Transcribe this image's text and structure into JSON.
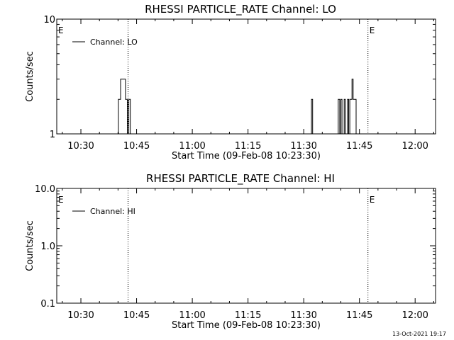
{
  "page_stamp": "13-Oct-2021 19:17",
  "colors": {
    "background": "#ffffff",
    "ink": "#000000"
  },
  "chart_data": [
    {
      "type": "line",
      "title": "RHESSI PARTICLE_RATE Channel: LO",
      "xlabel": "Start Time (09-Feb-08 10:23:30)",
      "ylabel": "Counts/sec",
      "x_unit": "minutes since 10:23:30",
      "xlim": [
        0,
        102
      ],
      "ylim": [
        1,
        10
      ],
      "yscale": "log",
      "x_ticks": [
        {
          "value": 6.5,
          "label": "10:30"
        },
        {
          "value": 21.5,
          "label": "10:45"
        },
        {
          "value": 36.5,
          "label": "11:00"
        },
        {
          "value": 51.5,
          "label": "11:15"
        },
        {
          "value": 66.5,
          "label": "11:30"
        },
        {
          "value": 81.5,
          "label": "11:45"
        },
        {
          "value": 96.5,
          "label": "12:00"
        }
      ],
      "y_ticks": [
        {
          "value": 1,
          "label": "1"
        },
        {
          "value": 10,
          "label": "10"
        }
      ],
      "grid": false,
      "legend": {
        "position": "top-left",
        "entries": [
          "Channel: LO"
        ]
      },
      "vertical_markers": [
        {
          "x": 0,
          "label": "E"
        },
        {
          "x": 19.2,
          "label": ""
        },
        {
          "x": 83.8,
          "label": "E"
        },
        {
          "x": 102,
          "label": ""
        }
      ],
      "series": [
        {
          "name": "Channel: LO",
          "x": [
            0,
            16.0,
            16.6,
            17.2,
            17.7,
            18.1,
            18.5,
            19.0,
            19.4,
            19.8,
            20.2,
            68.3,
            68.6,
            68.9,
            75.4,
            75.8,
            76.2,
            76.5,
            76.8,
            77.1,
            77.4,
            77.7,
            78.0,
            78.3,
            78.6,
            78.9,
            79.2,
            79.5,
            79.8,
            80.2,
            80.6,
            81.0,
            102
          ],
          "y": [
            1,
            1,
            2.0,
            3.0,
            3.0,
            3.0,
            2.0,
            1.0,
            2.0,
            1.0,
            1,
            1,
            2.0,
            1,
            1,
            2.0,
            1.0,
            2.0,
            1.0,
            1.0,
            2.0,
            1.0,
            1.0,
            2.0,
            1.0,
            2.0,
            2.0,
            3.0,
            2.0,
            2.0,
            1.0,
            1,
            1
          ]
        }
      ]
    },
    {
      "type": "line",
      "title": "RHESSI PARTICLE_RATE Channel: HI",
      "xlabel": "Start Time (09-Feb-08 10:23:30)",
      "ylabel": "Counts/sec",
      "x_unit": "minutes since 10:23:30",
      "xlim": [
        0,
        102
      ],
      "ylim": [
        0.1,
        10
      ],
      "yscale": "log",
      "x_ticks": [
        {
          "value": 6.5,
          "label": "10:30"
        },
        {
          "value": 21.5,
          "label": "10:45"
        },
        {
          "value": 36.5,
          "label": "11:00"
        },
        {
          "value": 51.5,
          "label": "11:15"
        },
        {
          "value": 66.5,
          "label": "11:30"
        },
        {
          "value": 81.5,
          "label": "11:45"
        },
        {
          "value": 96.5,
          "label": "12:00"
        }
      ],
      "y_ticks": [
        {
          "value": 0.1,
          "label": "0.1"
        },
        {
          "value": 1,
          "label": "1.0"
        },
        {
          "value": 10,
          "label": "10.0"
        }
      ],
      "grid": false,
      "legend": {
        "position": "top-left",
        "entries": [
          "Channel: HI"
        ]
      },
      "vertical_markers": [
        {
          "x": 0,
          "label": "E"
        },
        {
          "x": 19.2,
          "label": ""
        },
        {
          "x": 83.8,
          "label": "E"
        },
        {
          "x": 102,
          "label": ""
        }
      ],
      "series": [
        {
          "name": "Channel: HI",
          "x": [],
          "y": []
        }
      ]
    }
  ]
}
